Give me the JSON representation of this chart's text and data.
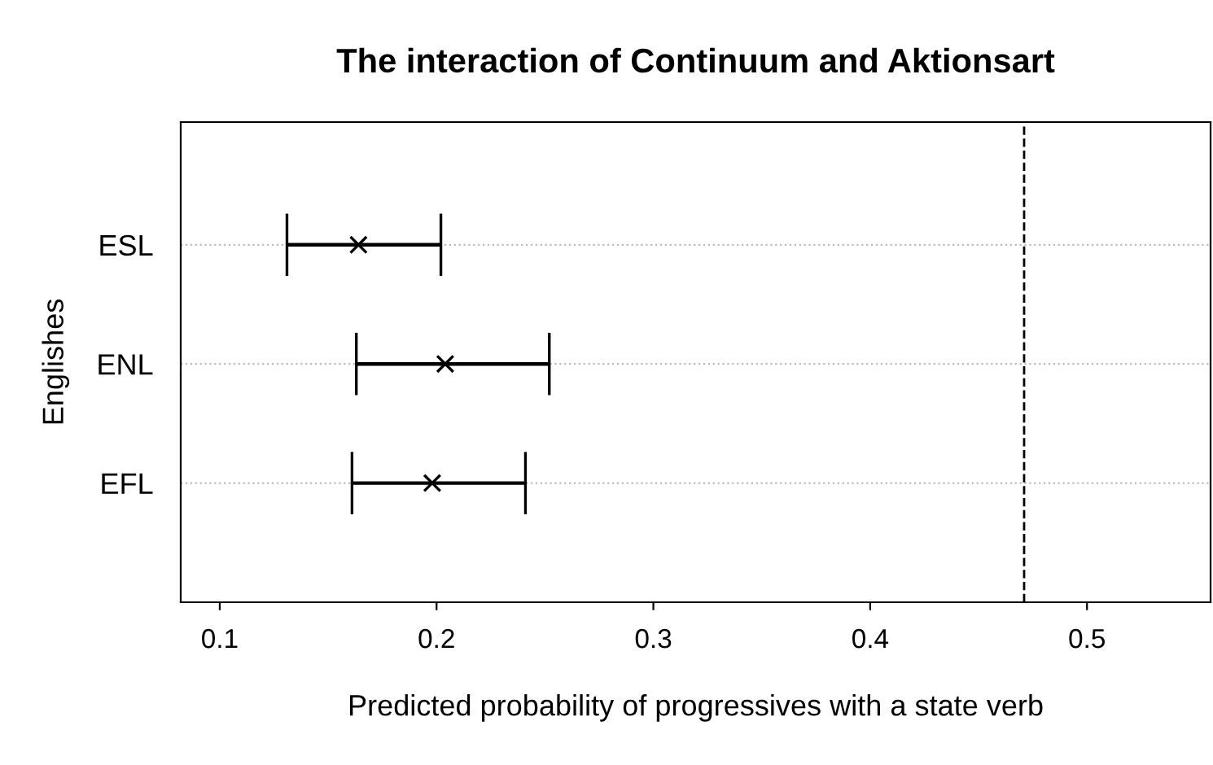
{
  "chart_data": {
    "type": "scatter",
    "orientation": "horizontal",
    "title": "The interaction of Continuum and Aktionsart",
    "xlabel": "Predicted probability of progressives with a state verb",
    "ylabel": "Englishes",
    "categories": [
      "ESL",
      "ENL",
      "EFL"
    ],
    "series": [
      {
        "color": "#000000",
        "values": [
          0.164,
          0.204,
          0.198
        ],
        "errors": [
          [
            0.131,
            0.202
          ],
          [
            0.163,
            0.252
          ],
          [
            0.161,
            0.241
          ]
        ]
      }
    ],
    "marker": "cross",
    "grid": "y",
    "legend": false,
    "xlim": [
      0.082,
      0.557
    ],
    "xticks": [
      0.1,
      0.2,
      0.3,
      0.4,
      0.5
    ],
    "ref_lines": [
      {
        "axis": "x",
        "value": 0.471,
        "color": "#000000",
        "line_style": "dashed"
      }
    ]
  }
}
